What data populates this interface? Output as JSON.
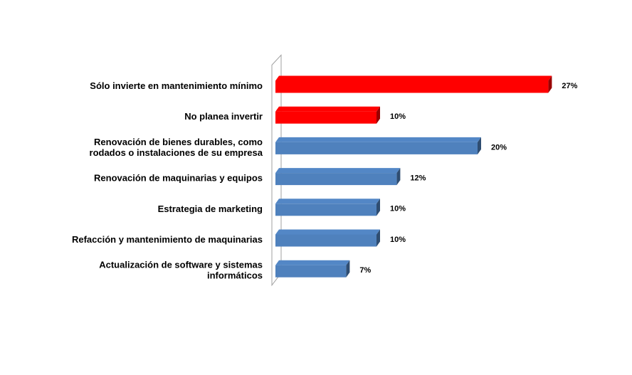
{
  "chart_data": {
    "type": "bar",
    "orientation": "horizontal",
    "style": "3d",
    "categories": [
      [
        "Sólo invierte en mantenimiento mínimo"
      ],
      [
        "No planea invertir"
      ],
      [
        "Renovación de bienes durables, como",
        "rodados o instalaciones de su empresa"
      ],
      [
        "Renovación de maquinarias y equipos"
      ],
      [
        "Estrategia de marketing"
      ],
      [
        "Refacción y mantenimiento de maquinarias"
      ],
      [
        "Actualización de software y sistemas",
        "informáticos"
      ]
    ],
    "values": [
      27,
      10,
      20,
      12,
      10,
      10,
      7
    ],
    "value_labels": [
      "27%",
      "10%",
      "20%",
      "12%",
      "10%",
      "10%",
      "7%"
    ],
    "bar_colors": [
      "#ff0000",
      "#ff0000",
      "#4f81bd",
      "#4f81bd",
      "#4f81bd",
      "#4f81bd",
      "#4f81bd"
    ],
    "xlim": [
      0,
      27
    ],
    "grid": false,
    "legend": "none"
  }
}
